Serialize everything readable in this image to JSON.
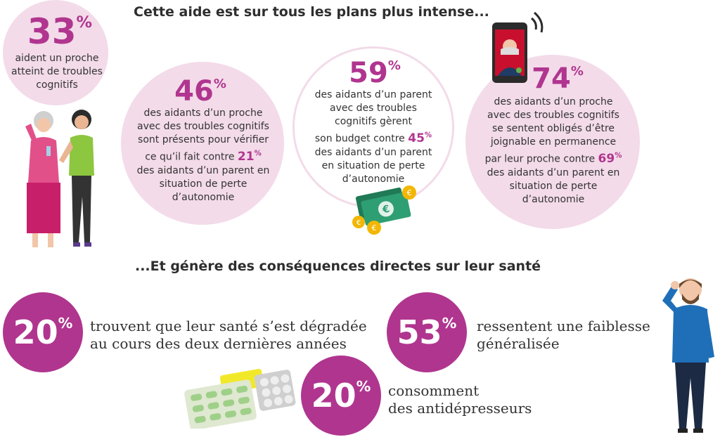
{
  "headings": {
    "top": "Cette aide est sur tous les plans plus intense...",
    "middle": "...Et génère des conséquences directes sur leur santé"
  },
  "stat1": {
    "value": "33",
    "unit": "%",
    "text": [
      "aident un proche",
      "atteint de troubles",
      "cognitifs"
    ]
  },
  "stat2": {
    "value": "46",
    "unit": "%",
    "lines_before": [
      "des aidants d’un proche",
      "avec des troubles cognitifs",
      "sont présents pour vérifier"
    ],
    "compare_prefix": "ce qu’il fait contre ",
    "compare_value": "21",
    "compare_unit": "%",
    "lines_after": [
      "des aidants d’un parent en",
      "situation de perte",
      "d’autonomie"
    ]
  },
  "stat3": {
    "value": "59",
    "unit": "%",
    "lines_before": [
      "des aidants d’un parent",
      "avec des troubles",
      "cognitifs gèrent"
    ],
    "compare_prefix": "son budget contre ",
    "compare_value": "45",
    "compare_unit": "%",
    "lines_after": [
      "des aidants d’un parent",
      "en situation de perte",
      "d’autonomie"
    ]
  },
  "stat4": {
    "value": "74",
    "unit": "%",
    "lines_before": [
      "des aidants d’un proche",
      "avec des troubles cognitifs",
      "se sentent obligés d’être",
      "joignable en permanence"
    ],
    "compare_prefix": "par leur proche contre ",
    "compare_value": "69",
    "compare_unit": "%",
    "lines_after": [
      "des aidants d’un parent en",
      "situation de perte",
      "d’autonomie"
    ]
  },
  "health": [
    {
      "value": "20",
      "unit": "%",
      "lines": [
        "trouvent que leur santé s’est dégradée",
        "au cours des deux dernières années"
      ]
    },
    {
      "value": "53",
      "unit": "%",
      "lines": [
        "ressentent une faiblesse",
        "généralisée"
      ]
    },
    {
      "value": "20",
      "unit": "%",
      "lines": [
        "consomment",
        "des antidépresseurs"
      ]
    }
  ],
  "colors": {
    "accent": "#b0358f",
    "bubble": "#f3dbe9",
    "money": "#2e9e73",
    "coin": "#f2b705"
  },
  "icons": [
    "smartphone-icon",
    "banknotes-icon",
    "coins-icon",
    "pill-blister-icon",
    "women-illustration",
    "man-headache-illustration"
  ]
}
